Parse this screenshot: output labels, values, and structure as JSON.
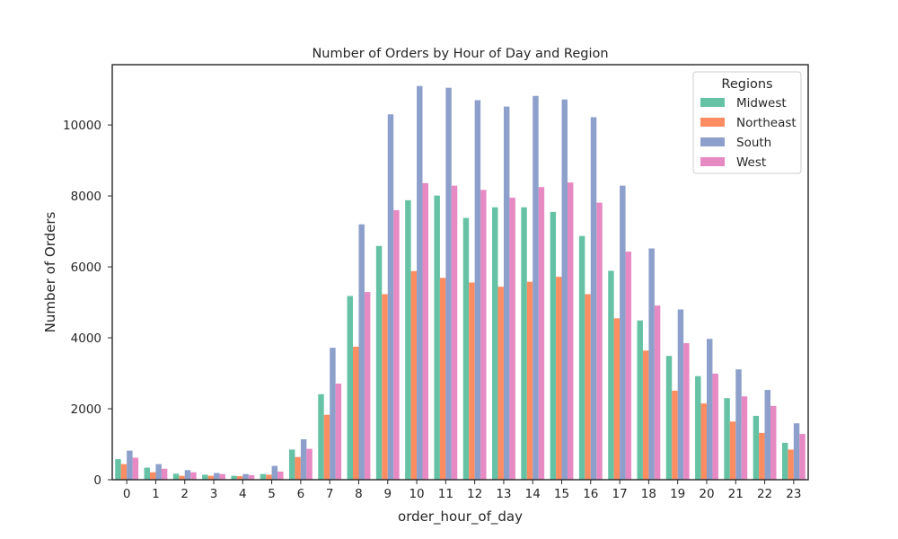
{
  "chart_data": {
    "type": "bar",
    "title": "Number of Orders by Hour of Day and Region",
    "xlabel": "order_hour_of_day",
    "ylabel": "Number of Orders",
    "categories": [
      "0",
      "1",
      "2",
      "3",
      "4",
      "5",
      "6",
      "7",
      "8",
      "9",
      "10",
      "11",
      "12",
      "13",
      "14",
      "15",
      "16",
      "17",
      "18",
      "19",
      "20",
      "21",
      "22",
      "23"
    ],
    "ylim": [
      0,
      11700
    ],
    "yticks": [
      0,
      2000,
      4000,
      6000,
      8000,
      10000
    ],
    "grid": false,
    "legend": {
      "title": "Regions",
      "placement": "top-right"
    },
    "series": [
      {
        "name": "Midwest",
        "color": "#66c2a5",
        "values": [
          580,
          340,
          170,
          140,
          110,
          160,
          850,
          2410,
          5180,
          6590,
          7880,
          8010,
          7380,
          7680,
          7680,
          7550,
          6870,
          5890,
          4490,
          3490,
          2920,
          2300,
          1800,
          1040
        ]
      },
      {
        "name": "Northeast",
        "color": "#fc8d62",
        "values": [
          440,
          210,
          110,
          110,
          100,
          140,
          640,
          1830,
          3750,
          5230,
          5880,
          5690,
          5560,
          5440,
          5580,
          5720,
          5230,
          4550,
          3640,
          2510,
          2150,
          1640,
          1320,
          850
        ]
      },
      {
        "name": "South",
        "color": "#8da0cb",
        "values": [
          820,
          440,
          270,
          190,
          160,
          390,
          1140,
          3720,
          7200,
          10300,
          11100,
          11050,
          10700,
          10520,
          10820,
          10720,
          10220,
          8290,
          6520,
          4800,
          3970,
          3110,
          2530,
          1590
        ]
      },
      {
        "name": "West",
        "color": "#e78ac3",
        "values": [
          620,
          310,
          210,
          160,
          130,
          230,
          870,
          2710,
          5290,
          7600,
          8360,
          8290,
          8170,
          7950,
          8250,
          8380,
          7810,
          6430,
          4910,
          3850,
          2990,
          2350,
          2080,
          1290
        ]
      }
    ]
  }
}
